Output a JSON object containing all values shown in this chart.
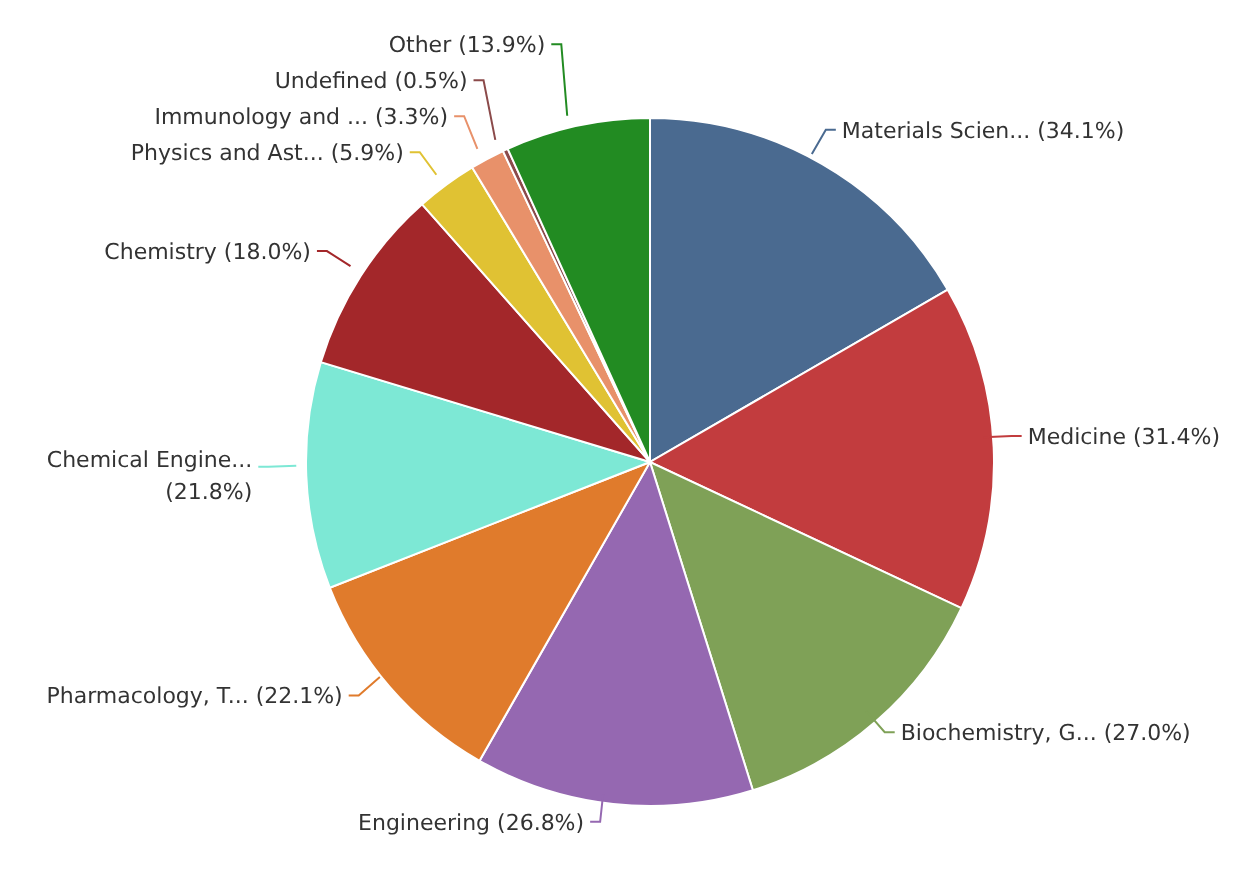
{
  "chart_data": {
    "type": "pie",
    "categories": [
      "Materials Scien...",
      "Medicine",
      "Biochemistry, G...",
      "Engineering",
      "Pharmacology, T...",
      "Chemical Engine...",
      "Chemistry",
      "Physics and Ast...",
      "Immunology and ...",
      "Undefined",
      "Other"
    ],
    "values": [
      34.1,
      31.4,
      27.0,
      26.8,
      22.1,
      21.8,
      18.0,
      5.9,
      3.3,
      0.5,
      13.9
    ],
    "value_labels": [
      "(34.1%)",
      "(31.4%)",
      "(27.0%)",
      "(26.8%)",
      "(22.1%)",
      "(21.8%)",
      "(18.0%)",
      "(5.9%)",
      "(3.3%)",
      "(0.5%)",
      "(13.9%)"
    ],
    "colors": [
      "#4a6a90",
      "#c23c3e",
      "#7fa157",
      "#9568b1",
      "#e07b2c",
      "#7de8d5",
      "#a3272a",
      "#e0c233",
      "#e8916a",
      "#8b4a4a",
      "#228b22"
    ]
  }
}
